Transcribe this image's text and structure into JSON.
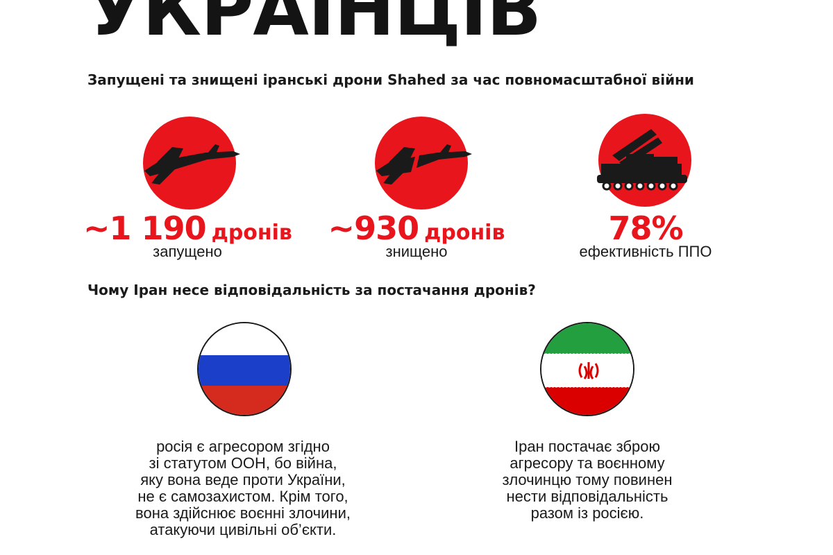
{
  "header": {
    "title": "УКРАЇНЦІВ",
    "subtitle": "Запущені та знищені іранські дрони Shahed за час повномасштабної війни"
  },
  "stats": [
    {
      "icon": "shahed-drone-icon",
      "value": "~1 190",
      "unit": "дронів",
      "label": "запущено"
    },
    {
      "icon": "broken-drone-icon",
      "value": "~930",
      "unit": "дронів",
      "label": "знищено"
    },
    {
      "icon": "air-defense-launcher-icon",
      "value": "78%",
      "unit": "",
      "label": "ефективність ППО"
    }
  ],
  "question": "Чому Іран несе відповідальність за постачання дронів?",
  "reasons": [
    {
      "flag": "russia-flag-icon",
      "lines": [
        "росія є агресором згідно",
        "зі статутом ООН, бо війна,",
        "яку вона веде проти України,",
        "не є самозахистом. Крім того,",
        "вона здійснює воєнні злочини,",
        "атакуючи цивільні об’єкти."
      ]
    },
    {
      "flag": "iran-flag-icon",
      "lines": [
        "Іран постачає зброю",
        "агресору та воєнному",
        "злочинцю тому повинен",
        "нести відповідальність",
        "разом із росією."
      ]
    }
  ],
  "colors": {
    "accent": "#e8151d",
    "text": "#1a1a1a",
    "russia_white": "#ffffff",
    "russia_blue": "#1c3fc9",
    "russia_red": "#d52b1e",
    "iran_green": "#239f40",
    "iran_red": "#da0000"
  }
}
